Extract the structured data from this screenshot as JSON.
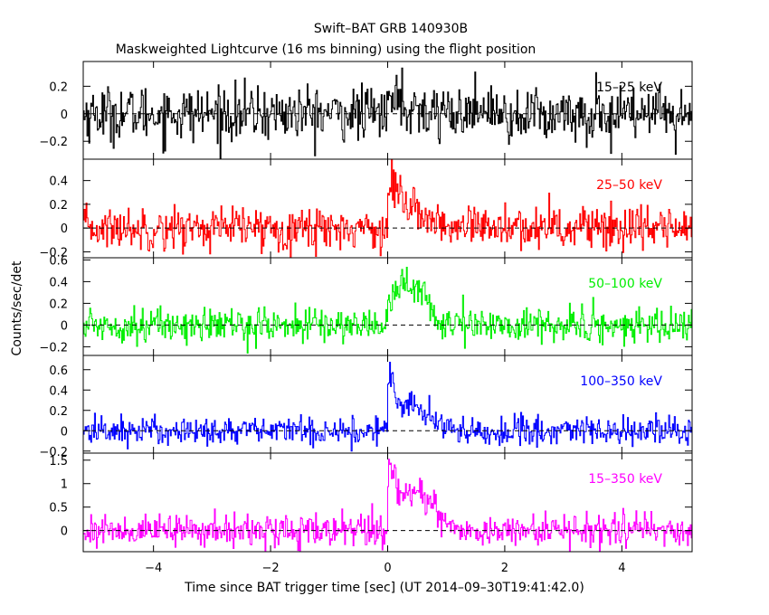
{
  "title": "Swift–BAT GRB 140930B",
  "subtitle": "Maskweighted Lightcurve (16 ms binning) using the flight position",
  "xlabel": "Time since BAT trigger time [sec] (UT 2014–09–30T19:41:42.0)",
  "ylabel": "Counts/sec/det",
  "chart_data": {
    "type": "line",
    "title": "Swift–BAT GRB 140930B",
    "subtitle": "Maskweighted Lightcurve (16 ms binning) using the flight position",
    "xlabel": "Time since BAT trigger time [sec] (UT 2014–09–30T19:41:42.0)",
    "ylabel": "Counts/sec/det",
    "xlim": [
      -5.2,
      5.2
    ],
    "x_ticks": [
      -4,
      -2,
      0,
      2,
      4
    ],
    "x_tick_labels": [
      "−4",
      "−2",
      "0",
      "2",
      "4"
    ],
    "bin_size_sec": 0.016,
    "panels": [
      {
        "name": "15–25 keV",
        "color": "#000000",
        "ylim": [
          -0.33,
          0.38
        ],
        "yticks": [
          -0.2,
          0,
          0.2
        ],
        "ytick_labels": [
          "−0.2",
          "0",
          "0.2"
        ],
        "noise_sigma": 0.1,
        "pulses": [
          {
            "t": 0.05,
            "amp": 0.12,
            "width": 0.25
          }
        ]
      },
      {
        "name": "25–50 keV",
        "color": "#ff0000",
        "ylim": [
          -0.25,
          0.58
        ],
        "yticks": [
          -0.2,
          0,
          0.2,
          0.4
        ],
        "ytick_labels": [
          "−0.2",
          "0",
          "0.2",
          "0.4"
        ],
        "noise_sigma": 0.09,
        "pulses": [
          {
            "t": 0.05,
            "amp": 0.3,
            "width": 0.15
          },
          {
            "t": 0.4,
            "amp": 0.15,
            "width": 0.3
          }
        ]
      },
      {
        "name": "50–100 keV",
        "color": "#00ee00",
        "ylim": [
          -0.28,
          0.62
        ],
        "yticks": [
          -0.2,
          0,
          0.2,
          0.4,
          0.6
        ],
        "ytick_labels": [
          "−0.2",
          "0",
          "0.2",
          "0.4",
          "0.6"
        ],
        "noise_sigma": 0.08,
        "pulses": [
          {
            "t": 0.2,
            "amp": 0.35,
            "width": 0.25
          },
          {
            "t": 0.6,
            "amp": 0.2,
            "width": 0.15
          }
        ]
      },
      {
        "name": "100–350 keV",
        "color": "#0000ff",
        "ylim": [
          -0.22,
          0.74
        ],
        "yticks": [
          -0.2,
          0,
          0.2,
          0.4,
          0.6
        ],
        "ytick_labels": [
          "−0.2",
          "0",
          "0.2",
          "0.4",
          "0.6"
        ],
        "noise_sigma": 0.07,
        "pulses": [
          {
            "t": 0.03,
            "amp": 0.45,
            "width": 0.06
          },
          {
            "t": 0.25,
            "amp": 0.25,
            "width": 0.2
          },
          {
            "t": 0.6,
            "amp": 0.12,
            "width": 0.25
          }
        ]
      },
      {
        "name": "15–350 keV",
        "color": "#ff00ff",
        "ylim": [
          -0.45,
          1.65
        ],
        "yticks": [
          0,
          0.5,
          1,
          1.5
        ],
        "ytick_labels": [
          "0",
          "0.5",
          "1",
          "1.5"
        ],
        "noise_sigma": 0.17,
        "pulses": [
          {
            "t": 0.05,
            "amp": 0.9,
            "width": 0.1
          },
          {
            "t": 0.35,
            "amp": 0.7,
            "width": 0.28
          },
          {
            "t": 0.75,
            "amp": 0.3,
            "width": 0.2
          }
        ]
      }
    ],
    "grid": false,
    "legend": "label inside each panel, upper right"
  }
}
